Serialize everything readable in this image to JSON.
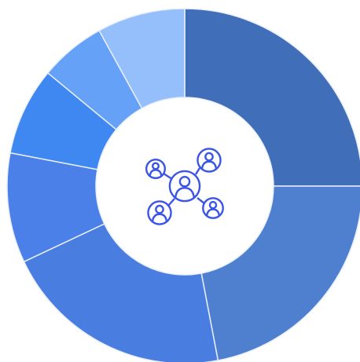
{
  "chart_data": {
    "type": "pie",
    "donut": true,
    "values": [
      25,
      22,
      21,
      10,
      8,
      6,
      8
    ],
    "colors": [
      "#406eb8",
      "#4f80d0",
      "#4a7de0",
      "#4a80e8",
      "#3f88f2",
      "#66a1f8",
      "#95bffb"
    ]
  }
}
